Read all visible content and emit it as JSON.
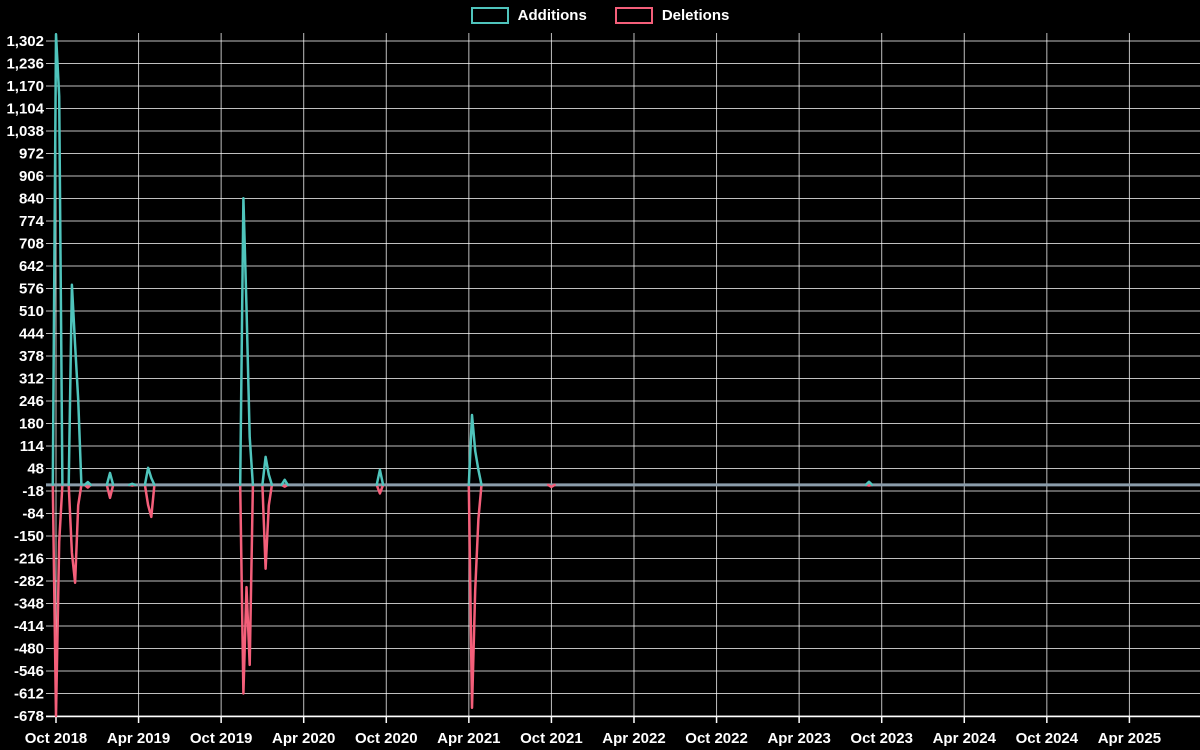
{
  "window": {
    "background_color": "#000000",
    "text_color": "#FFFFFF"
  },
  "legend": {
    "position": "top-center",
    "items": [
      {
        "label": "Additions",
        "color": "#4FC4BC"
      },
      {
        "label": "Deletions",
        "color": "#F45F7A"
      }
    ]
  },
  "chart_data": {
    "type": "line",
    "title": "",
    "xlabel": "",
    "ylabel": "",
    "grid": true,
    "grid_color": "#FFFFFF",
    "baseline_value": 0,
    "baseline_color": "#8B9DAB",
    "x_axis": {
      "unit": "week",
      "start_label": "Oct 2018",
      "end_label": "Apr 2025",
      "weeks_per_tick": 26,
      "total_weeks": 360,
      "tick_labels": [
        "Oct 2018",
        "Apr 2019",
        "Oct 2019",
        "Apr 2020",
        "Oct 2020",
        "Apr 2021",
        "Oct 2021",
        "Apr 2022",
        "Oct 2022",
        "Apr 2023",
        "Oct 2023",
        "Apr 2024",
        "Oct 2024",
        "Apr 2025"
      ]
    },
    "y_axis": {
      "min": -678,
      "max": 1324,
      "tick_step": 66,
      "tick_values": [
        1302,
        1236,
        1170,
        1104,
        1038,
        972,
        906,
        840,
        774,
        708,
        642,
        576,
        510,
        444,
        378,
        312,
        246,
        180,
        114,
        48,
        -18,
        -84,
        -150,
        -216,
        -282,
        -348,
        -414,
        -480,
        -546,
        -612,
        -678
      ]
    },
    "series": [
      {
        "name": "Additions",
        "color": "#4FC4BC",
        "default_value": 0,
        "points_weekly": [
          [
            0,
            1322
          ],
          [
            1,
            1140
          ],
          [
            5,
            587
          ],
          [
            6,
            410
          ],
          [
            7,
            250
          ],
          [
            10,
            8
          ],
          [
            17,
            35
          ],
          [
            24,
            3
          ],
          [
            29,
            50
          ],
          [
            30,
            20
          ],
          [
            59,
            841
          ],
          [
            60,
            520
          ],
          [
            61,
            140
          ],
          [
            66,
            82
          ],
          [
            67,
            30
          ],
          [
            72,
            15
          ],
          [
            102,
            44
          ],
          [
            131,
            205
          ],
          [
            132,
            100
          ],
          [
            133,
            44
          ],
          [
            256,
            9
          ]
        ]
      },
      {
        "name": "Deletions",
        "color": "#F45F7A",
        "default_value": 0,
        "points_weekly": [
          [
            0,
            -678
          ],
          [
            1,
            -167
          ],
          [
            5,
            -199
          ],
          [
            6,
            -287
          ],
          [
            7,
            -60
          ],
          [
            10,
            -8
          ],
          [
            17,
            -38
          ],
          [
            24,
            -2
          ],
          [
            29,
            -59
          ],
          [
            30,
            -94
          ],
          [
            59,
            -612
          ],
          [
            60,
            -300
          ],
          [
            61,
            -528
          ],
          [
            66,
            -246
          ],
          [
            67,
            -60
          ],
          [
            72,
            -5
          ],
          [
            102,
            -25
          ],
          [
            131,
            -654
          ],
          [
            132,
            -308
          ],
          [
            133,
            -100
          ],
          [
            156,
            -6
          ],
          [
            256,
            -2
          ]
        ]
      }
    ]
  }
}
